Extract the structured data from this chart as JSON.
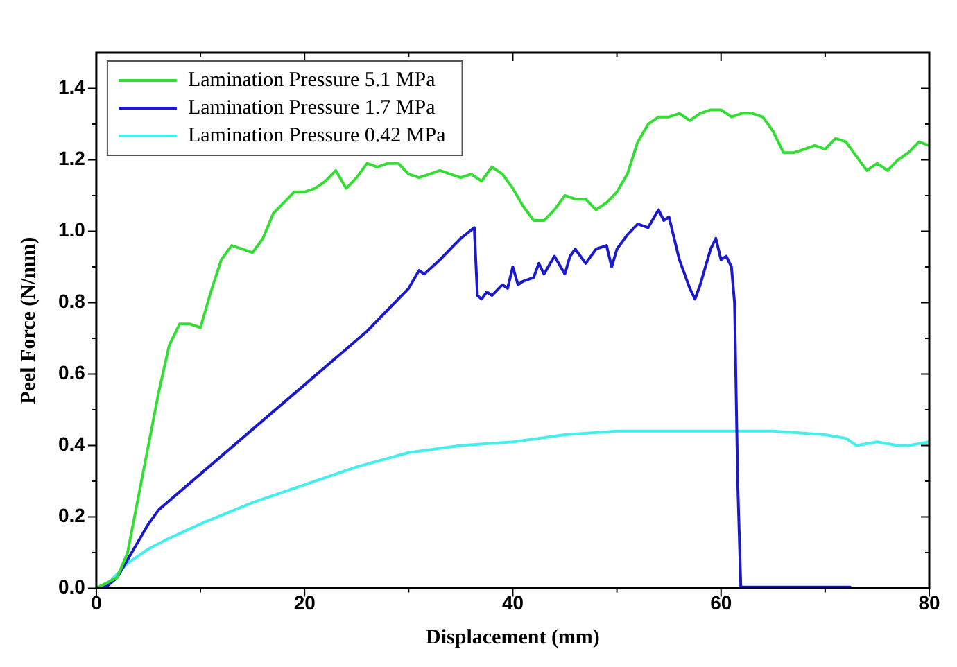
{
  "chart_data": {
    "type": "line",
    "xlabel": "Displacement (mm)",
    "ylabel": "Peel Force (N/mm)",
    "xlim": [
      0,
      80
    ],
    "ylim": [
      0,
      1.5
    ],
    "xticks": [
      0,
      20,
      40,
      60,
      80
    ],
    "yticks": [
      {
        "value": 0,
        "label": "0.0"
      },
      0.2,
      0.4,
      0.6,
      0.8,
      {
        "value": 1,
        "label": "1.0"
      },
      1.2,
      1.4
    ],
    "grid": false,
    "legend": "top left",
    "marker": "none",
    "line_style": "solid",
    "series": [
      {
        "name": "Lamination Pressure 5.1 MPa",
        "color": "#33dd33",
        "x": [
          0,
          2,
          3,
          4,
          5,
          6,
          7,
          8,
          9,
          10,
          11,
          12,
          13,
          14,
          15,
          16,
          17,
          18,
          19,
          20,
          21,
          22,
          23,
          24,
          25,
          26,
          27,
          28,
          29,
          30,
          31,
          32,
          33,
          34,
          35,
          36,
          37,
          38,
          39,
          40,
          41,
          42,
          43,
          44,
          45,
          46,
          47,
          48,
          49,
          50,
          51,
          52,
          53,
          54,
          55,
          56,
          57,
          58,
          59,
          60,
          61,
          62,
          63,
          64,
          65,
          66,
          67,
          68,
          69,
          70,
          71,
          72,
          73,
          74,
          75,
          76,
          77,
          78,
          79,
          80
        ],
        "values": [
          0,
          0.03,
          0.1,
          0.25,
          0.4,
          0.55,
          0.68,
          0.74,
          0.74,
          0.73,
          0.83,
          0.92,
          0.96,
          0.95,
          0.94,
          0.98,
          1.05,
          1.08,
          1.11,
          1.11,
          1.12,
          1.14,
          1.17,
          1.12,
          1.15,
          1.19,
          1.18,
          1.19,
          1.19,
          1.16,
          1.15,
          1.16,
          1.17,
          1.16,
          1.15,
          1.16,
          1.14,
          1.18,
          1.16,
          1.12,
          1.07,
          1.03,
          1.03,
          1.06,
          1.1,
          1.09,
          1.09,
          1.06,
          1.08,
          1.11,
          1.16,
          1.25,
          1.3,
          1.32,
          1.32,
          1.33,
          1.31,
          1.33,
          1.34,
          1.34,
          1.32,
          1.33,
          1.33,
          1.32,
          1.28,
          1.22,
          1.22,
          1.23,
          1.24,
          1.23,
          1.26,
          1.25,
          1.21,
          1.17,
          1.19,
          1.17,
          1.2,
          1.22,
          1.25,
          1.24
        ]
      },
      {
        "name": "Lamination Pressure 1.7 MPa",
        "color": "#1a1acc",
        "x": [
          0,
          1,
          2,
          3,
          4,
          5,
          6,
          8,
          10,
          12,
          14,
          16,
          18,
          20,
          22,
          24,
          26,
          28,
          30,
          31,
          31.5,
          33,
          35,
          36.3,
          36.6,
          37,
          37.5,
          38,
          39,
          39.5,
          40,
          40.5,
          41,
          42,
          42.5,
          43,
          44,
          45,
          45.5,
          46,
          47,
          48,
          49,
          49.5,
          50,
          51,
          52,
          53,
          54,
          54.5,
          55,
          56,
          57,
          57.5,
          58,
          59,
          59.5,
          60,
          60.5,
          61,
          61.3,
          61.6,
          61.9,
          65,
          70,
          72.5
        ],
        "values": [
          0,
          0.005,
          0.03,
          0.08,
          0.13,
          0.18,
          0.22,
          0.27,
          0.32,
          0.37,
          0.42,
          0.47,
          0.52,
          0.57,
          0.62,
          0.67,
          0.72,
          0.78,
          0.84,
          0.89,
          0.88,
          0.92,
          0.98,
          1.01,
          0.82,
          0.81,
          0.83,
          0.82,
          0.85,
          0.84,
          0.9,
          0.85,
          0.86,
          0.87,
          0.91,
          0.88,
          0.93,
          0.88,
          0.93,
          0.95,
          0.91,
          0.95,
          0.96,
          0.9,
          0.95,
          0.99,
          1.02,
          1.01,
          1.06,
          1.03,
          1.04,
          0.92,
          0.84,
          0.81,
          0.85,
          0.95,
          0.98,
          0.92,
          0.93,
          0.9,
          0.8,
          0.3,
          0.003,
          0.003,
          0.003,
          0.003
        ]
      },
      {
        "name": "Lamination Pressure 0.42 MPa",
        "color": "#44eeee",
        "x": [
          0,
          1,
          2,
          3,
          5,
          7,
          10,
          15,
          20,
          25,
          30,
          35,
          40,
          45,
          50,
          55,
          60,
          65,
          70,
          72,
          73,
          75,
          77,
          78,
          80
        ],
        "values": [
          0,
          0.01,
          0.04,
          0.07,
          0.11,
          0.14,
          0.18,
          0.24,
          0.29,
          0.34,
          0.38,
          0.4,
          0.41,
          0.43,
          0.44,
          0.44,
          0.44,
          0.44,
          0.43,
          0.42,
          0.4,
          0.41,
          0.4,
          0.4,
          0.41
        ]
      }
    ]
  }
}
